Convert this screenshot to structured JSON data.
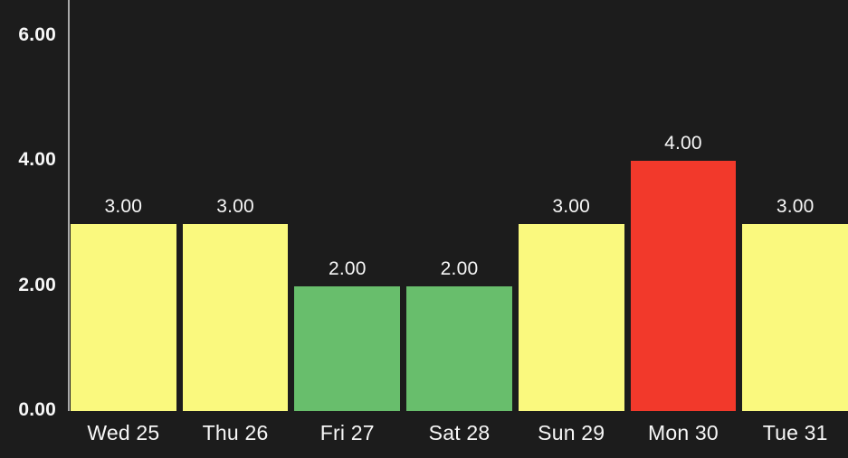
{
  "chart_data": {
    "type": "bar",
    "title": "",
    "xlabel": "",
    "ylabel": "",
    "categories": [
      "Wed 25",
      "Thu 26",
      "Fri 27",
      "Sat 28",
      "Sun 29",
      "Mon 30",
      "Tue 31"
    ],
    "values": [
      3,
      3,
      2,
      2,
      3,
      4,
      3
    ],
    "value_labels": [
      "3.00",
      "3.00",
      "2.00",
      "2.00",
      "3.00",
      "4.00",
      "3.00"
    ],
    "bar_colors": [
      "#FAF97E",
      "#FAF97E",
      "#68BE6C",
      "#68BE6C",
      "#FAF97E",
      "#F2392B",
      "#FAF97E"
    ],
    "y_ticks": [
      {
        "value": 0,
        "label": "0.00"
      },
      {
        "value": 2,
        "label": "2.00"
      },
      {
        "value": 4,
        "label": "4.00"
      },
      {
        "value": 6,
        "label": "6.00"
      }
    ],
    "ylim": [
      0,
      6
    ],
    "grid": false,
    "legend": false,
    "legend_position": "none"
  },
  "colors": {
    "background": "#1C1C1C",
    "axis_line": "#A9A9A9",
    "text": "#F7F7F7"
  }
}
